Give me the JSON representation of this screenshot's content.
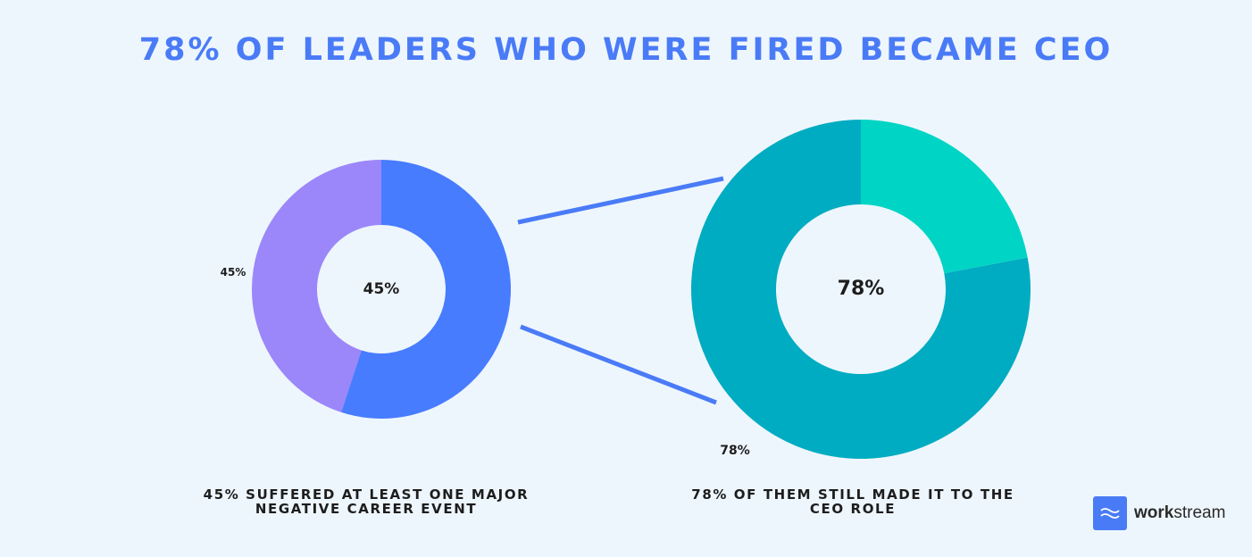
{
  "title": "78% OF LEADERS WHO WERE FIRED BECAME CEO",
  "chart_data": [
    {
      "type": "pie",
      "variant": "donut",
      "categories": [
        "",
        ""
      ],
      "values": [
        45,
        55
      ],
      "colors": [
        "#9b87f9",
        "#477cff"
      ],
      "center_label": "45%",
      "slice_label": "45%",
      "caption_line1": "45% SUFFERED AT LEAST ONE MAJOR",
      "caption_line2": "NEGATIVE CAREER EVENT"
    },
    {
      "type": "pie",
      "variant": "donut",
      "categories": [
        "",
        ""
      ],
      "values": [
        78,
        22
      ],
      "colors": [
        "#00acc1",
        "#00d5c5"
      ],
      "center_label": "78%",
      "slice_label": "78%",
      "caption_line1": "78% OF THEM STILL MADE IT TO THE",
      "caption_line2": "CEO ROLE"
    }
  ],
  "connector_color": "#4a7bf7",
  "brand": {
    "name_bold": "work",
    "name_rest": "stream",
    "icon": "wave-icon",
    "color": "#4a7bf7"
  }
}
